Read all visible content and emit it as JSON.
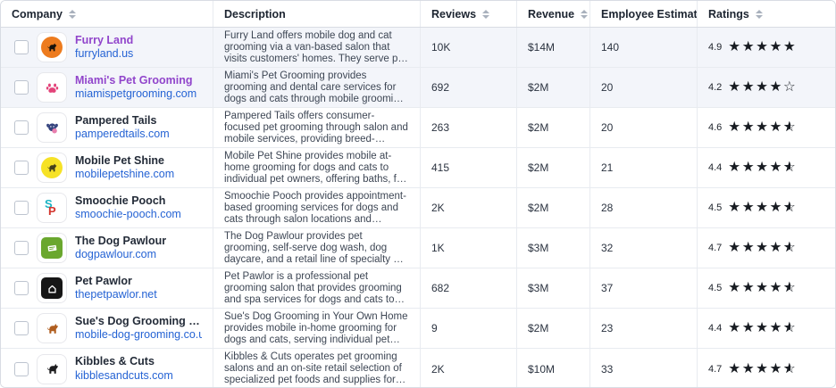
{
  "colors": {
    "link_blue": "#2563d4",
    "visited_purple": "#9145cb",
    "star_black": "#171b21",
    "row_highlight": "#f3f5fa",
    "border": "#e8ebf0"
  },
  "table": {
    "columns": [
      {
        "label": "Company",
        "sortable": true
      },
      {
        "label": "Description",
        "sortable": false
      },
      {
        "label": "Reviews",
        "sortable": true
      },
      {
        "label": "Revenue",
        "sortable": true
      },
      {
        "label": "Employee Estimate",
        "sortable": true
      },
      {
        "label": "Ratings",
        "sortable": true
      }
    ],
    "rows": [
      {
        "name": "Furry Land",
        "domain": "furryland.us",
        "visited": true,
        "highlighted": true,
        "checked": false,
        "logo": {
          "icon": "dog-icon",
          "shape": "circle",
          "bg": "#ed7b1e",
          "fg": "#17120c"
        },
        "description": "Furry Land offers mobile dog and cat grooming via a van-based salon that visits customers' homes. They serve pet owner…",
        "reviews": "10K",
        "revenue": "$14M",
        "employees": "140",
        "rating": "4.9",
        "stars": {
          "full": 5,
          "half": false,
          "empty": 0
        }
      },
      {
        "name": "Miami's Pet Grooming",
        "domain": "miamispetgrooming.com",
        "visited": true,
        "highlighted": true,
        "checked": false,
        "logo": {
          "icon": "paw-icon",
          "shape": "plain",
          "fg": "#e34379"
        },
        "description": "Miami's Pet Grooming provides grooming and dental care services for dogs and cats through mobile grooming visits and in-…",
        "reviews": "692",
        "revenue": "$2M",
        "employees": "20",
        "rating": "4.2",
        "stars": {
          "full": 4,
          "half": false,
          "empty": 1
        }
      },
      {
        "name": "Pampered Tails",
        "domain": "pamperedtails.com",
        "visited": false,
        "highlighted": false,
        "checked": false,
        "logo": {
          "icon": "dog-face-icon",
          "shape": "plain",
          "fg": "#33427d"
        },
        "description": "Pampered Tails offers consumer-focused pet grooming through salon and mobile services, providing breed-specific haircu…",
        "reviews": "263",
        "revenue": "$2M",
        "employees": "20",
        "rating": "4.6",
        "stars": {
          "full": 4,
          "half": true,
          "empty": 0
        }
      },
      {
        "name": "Mobile Pet Shine",
        "domain": "mobilepetshine.com",
        "visited": false,
        "highlighted": false,
        "checked": false,
        "logo": {
          "icon": "dog-icon",
          "shape": "circle",
          "bg": "#f6e226",
          "fg": "#43401c"
        },
        "description": "Mobile Pet Shine provides mobile at-home grooming for dogs and cats to individual pet owners, offering baths, full haircuts,…",
        "reviews": "415",
        "revenue": "$2M",
        "employees": "21",
        "rating": "4.4",
        "stars": {
          "full": 4,
          "half": true,
          "empty": 0
        }
      },
      {
        "name": "Smoochie Pooch",
        "domain": "smoochie-pooch.com",
        "visited": false,
        "highlighted": false,
        "checked": false,
        "logo": {
          "icon": "letters-sp-icon",
          "shape": "plain",
          "letters": [
            {
              "ch": "S",
              "color": "#1ab4c4"
            },
            {
              "ch": "P",
              "color": "#d3362e"
            }
          ]
        },
        "description": "Smoochie Pooch provides appointment-based grooming services for dogs and cats through salon locations and mobile…",
        "reviews": "2K",
        "revenue": "$2M",
        "employees": "28",
        "rating": "4.5",
        "stars": {
          "full": 4,
          "half": true,
          "empty": 0
        }
      },
      {
        "name": "The Dog Pawlour",
        "domain": "dogpawlour.com",
        "visited": false,
        "highlighted": false,
        "checked": false,
        "logo": {
          "icon": "sign-icon",
          "shape": "square",
          "bg": "#6aa72e",
          "fg": "#ffffff"
        },
        "description": "The Dog Pawlour provides pet grooming, self-serve dog wash, dog daycare, and a retail line of specialty pet products for…",
        "reviews": "1K",
        "revenue": "$3M",
        "employees": "32",
        "rating": "4.7",
        "stars": {
          "full": 4,
          "half": true,
          "empty": 0
        }
      },
      {
        "name": "Pet Pawlor",
        "domain": "thepetpawlor.net",
        "visited": false,
        "highlighted": false,
        "checked": false,
        "logo": {
          "icon": "home-icon",
          "shape": "square",
          "bg": "#161616",
          "fg": "#ffffff"
        },
        "description": "Pet Pawlor is a professional pet grooming salon that provides grooming and spa services for dogs and cats to individual p…",
        "reviews": "682",
        "revenue": "$3M",
        "employees": "37",
        "rating": "4.5",
        "stars": {
          "full": 4,
          "half": true,
          "empty": 0
        }
      },
      {
        "name": "Sue's Dog Grooming in Your…",
        "domain": "mobile-dog-grooming.co.uk",
        "visited": false,
        "highlighted": false,
        "checked": false,
        "logo": {
          "icon": "dog-icon",
          "shape": "plain",
          "fg": "#b05e1f"
        },
        "description": "Sue's Dog Grooming in Your Own Home provides mobile in-home grooming for dogs and cats, serving individual pet…",
        "reviews": "9",
        "revenue": "$2M",
        "employees": "23",
        "rating": "4.4",
        "stars": {
          "full": 4,
          "half": true,
          "empty": 0
        }
      },
      {
        "name": "Kibbles & Cuts",
        "domain": "kibblesandcuts.com",
        "visited": false,
        "highlighted": false,
        "checked": false,
        "logo": {
          "icon": "dog-icon",
          "shape": "plain",
          "fg": "#1d1d1f"
        },
        "description": "Kibbles & Cuts operates pet grooming salons and an on-site retail selection of specialized pet foods and supplies for do…",
        "reviews": "2K",
        "revenue": "$10M",
        "employees": "33",
        "rating": "4.7",
        "stars": {
          "full": 4,
          "half": true,
          "empty": 0
        }
      }
    ]
  }
}
